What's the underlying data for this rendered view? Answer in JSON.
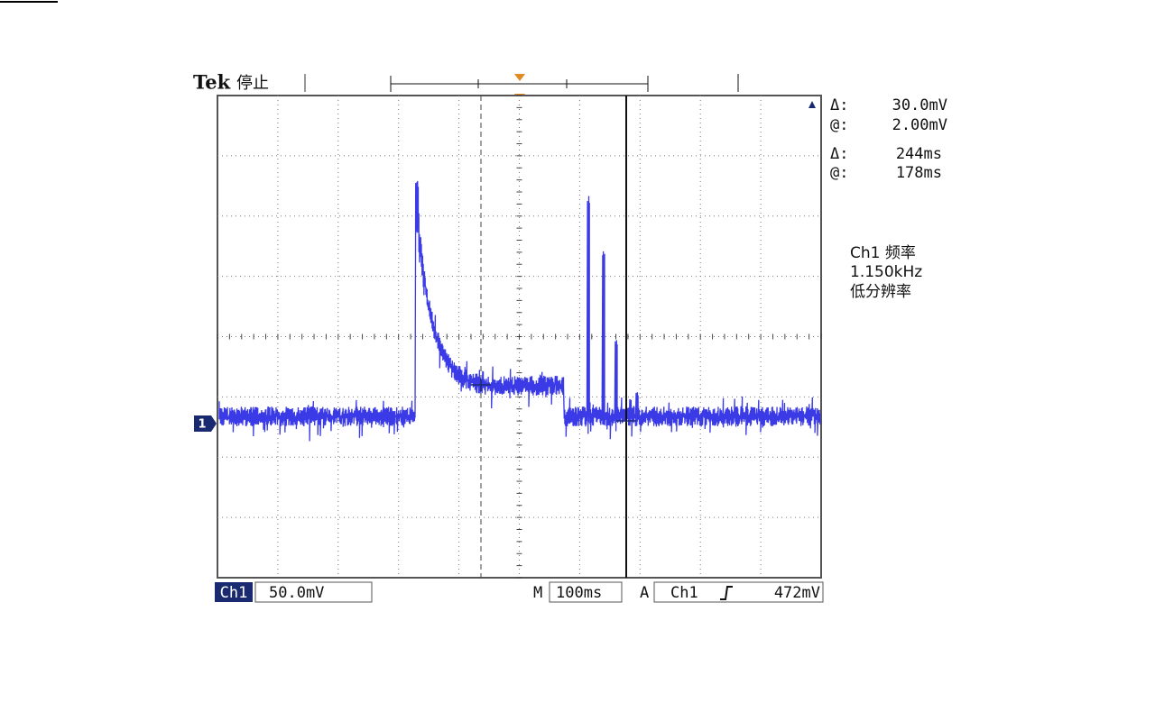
{
  "header": {
    "brand": "Tek",
    "status": "停止"
  },
  "readouts": [
    {
      "label": "Δ:",
      "value": "30.0mV"
    },
    {
      "label": "@:",
      "value": "2.00mV"
    },
    {
      "label": "Δ:",
      "value": "244ms"
    },
    {
      "label": "@:",
      "value": "178ms"
    }
  ],
  "measurement": {
    "lines": [
      "Ch1 频率",
      "1.150kHz",
      "低分辨率"
    ]
  },
  "channel_marker": "1",
  "status_bar": {
    "channel": "Ch1",
    "scale": "50.0mV",
    "time_label": "M",
    "time_scale": "100ms",
    "trigger_label": "A",
    "trigger_source": "Ch1",
    "trigger_level": "472mV"
  }
}
